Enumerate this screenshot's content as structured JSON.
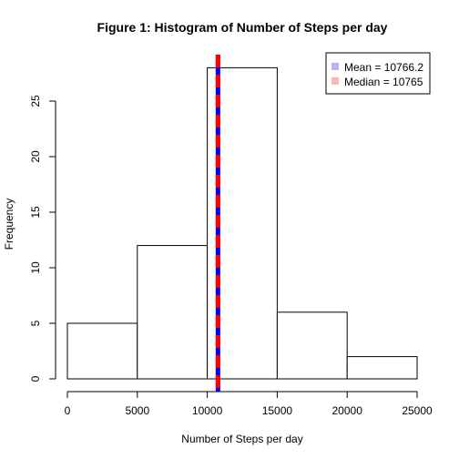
{
  "chart_data": {
    "type": "histogram",
    "title": "Figure 1: Histogram of Number of Steps per day",
    "xlabel": "Number of Steps per day",
    "ylabel": "Frequency",
    "xlim": [
      0,
      25000
    ],
    "ylim": [
      0,
      28
    ],
    "x_ticks": [
      "0",
      "5000",
      "10000",
      "15000",
      "20000",
      "25000"
    ],
    "y_ticks": [
      "0",
      "5",
      "10",
      "15",
      "20",
      "25"
    ],
    "bins": [
      {
        "start": 0,
        "end": 5000,
        "count": 5
      },
      {
        "start": 5000,
        "end": 10000,
        "count": 12
      },
      {
        "start": 10000,
        "end": 15000,
        "count": 28
      },
      {
        "start": 15000,
        "end": 20000,
        "count": 6
      },
      {
        "start": 20000,
        "end": 25000,
        "count": 2
      }
    ],
    "reference_lines": [
      {
        "name": "Mean",
        "value": 10766.2,
        "color": "#0000ff",
        "style": "solid"
      },
      {
        "name": "Median",
        "value": 10765,
        "color": "#ff0000",
        "style": "dashed"
      }
    ],
    "legend": {
      "placement": "top-right",
      "entries": [
        {
          "label": "Mean =  10766.2",
          "color": "#b3b3ff"
        },
        {
          "label": "Median =  10765",
          "color": "#ffb3b3"
        }
      ]
    }
  }
}
